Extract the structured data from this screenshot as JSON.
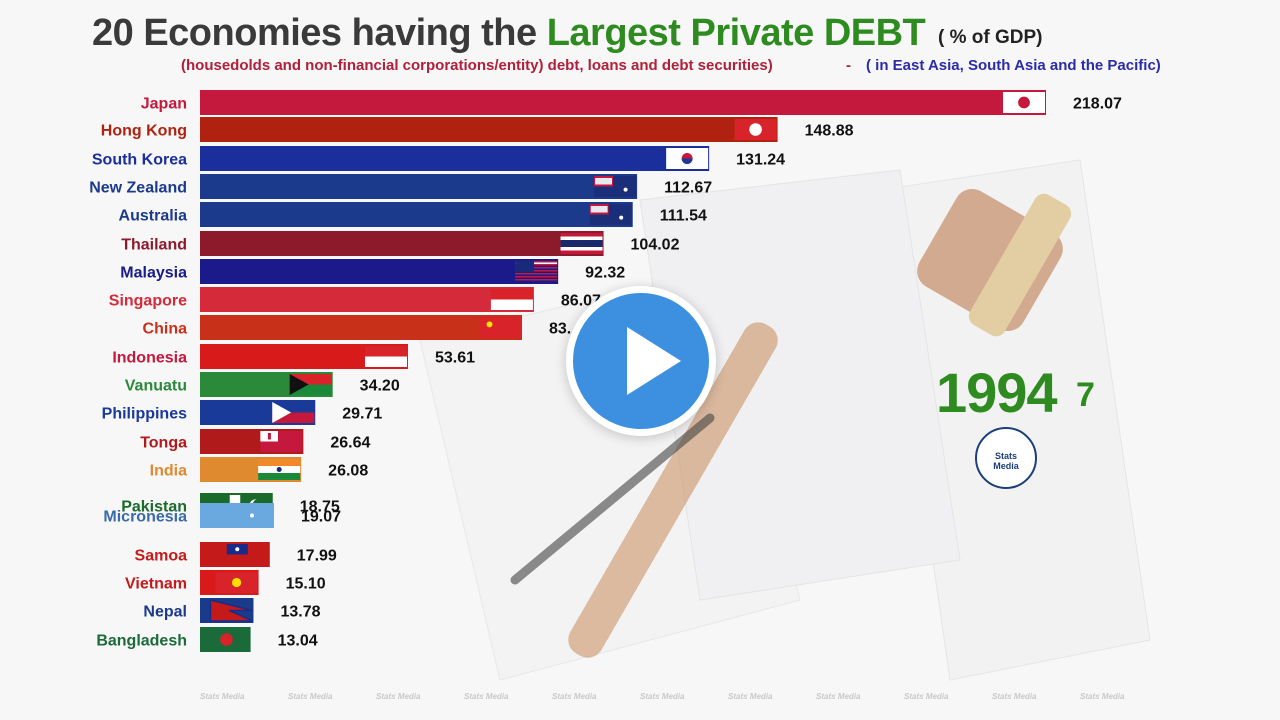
{
  "header": {
    "title_prefix": "20 Economies having the ",
    "title_accent": "Largest Private DEBT",
    "title_unit": "( % of GDP)",
    "subtitle": "(housedolds and non-financial corporations/entity) debt, loans and debt securities)",
    "subtitle_dash": "-",
    "region": "( in East Asia, South Asia and the Pacific)"
  },
  "year": {
    "main": "1994",
    "sub": "7"
  },
  "logo": {
    "line1": "Stats",
    "line2": "Media"
  },
  "watermark": "Stats Media",
  "colors": {
    "title_accent": "#2e8b1f",
    "subtitle": "#b0203a",
    "region": "#2c2ca8",
    "play": "#3d8fe0"
  },
  "chart_data": {
    "type": "bar",
    "orientation": "horizontal",
    "title": "20 Economies having the Largest Private DEBT",
    "unit": "( % of GDP)",
    "xlim": [
      0,
      218.07
    ],
    "bars": [
      {
        "name": "Japan",
        "value": 218.07,
        "value_label": "218.07",
        "color": "#c4183c",
        "label_color": "#c4183c",
        "flag": "japan"
      },
      {
        "name": "Hong Kong",
        "value": 148.88,
        "value_label": "148.88",
        "color": "#b0220f",
        "label_color": "#b0220f",
        "flag": "hong-kong"
      },
      {
        "name": "South Korea",
        "value": 131.24,
        "value_label": "131.24",
        "color": "#1a2e9c",
        "label_color": "#1a2e9c",
        "flag": "south-korea"
      },
      {
        "name": "New Zealand",
        "value": 112.67,
        "value_label": "112.67",
        "color": "#1c3a8c",
        "label_color": "#1c3a8c",
        "flag": "new-zealand"
      },
      {
        "name": "Australia",
        "value": 111.54,
        "value_label": "111.54",
        "color": "#1c3a8c",
        "label_color": "#1c3a8c",
        "flag": "australia"
      },
      {
        "name": "Thailand",
        "value": 104.02,
        "value_label": "104.02",
        "color": "#8c1a2a",
        "label_color": "#8c1a2a",
        "flag": "thailand"
      },
      {
        "name": "Malaysia",
        "value": 92.32,
        "value_label": "92.32",
        "color": "#1a1a8a",
        "label_color": "#1a1a8a",
        "flag": "malaysia"
      },
      {
        "name": "Singapore",
        "value": 86.07,
        "value_label": "86.07",
        "color": "#d42a3a",
        "label_color": "#d42a3a",
        "flag": "singapore"
      },
      {
        "name": "China",
        "value": 83.0,
        "value_label": "83.",
        "color": "#c8301a",
        "label_color": "#c8301a",
        "flag": "china"
      },
      {
        "name": "Indonesia",
        "value": 53.61,
        "value_label": "53.61",
        "color": "#d81a1a",
        "label_color": "#c4183c",
        "flag": "indonesia"
      },
      {
        "name": "Vanuatu",
        "value": 34.2,
        "value_label": "34.20",
        "color": "#2a8a3a",
        "label_color": "#2a8a3a",
        "flag": "vanuatu"
      },
      {
        "name": "Philippines",
        "value": 29.71,
        "value_label": "29.71",
        "color": "#1a3a9a",
        "label_color": "#1a3a9a",
        "flag": "philippines"
      },
      {
        "name": "Tonga",
        "value": 26.64,
        "value_label": "26.64",
        "color": "#b01a1a",
        "label_color": "#b01a1a",
        "flag": "tonga"
      },
      {
        "name": "India",
        "value": 26.08,
        "value_label": "26.08",
        "color": "#e08a30",
        "label_color": "#e08a30",
        "flag": "india"
      },
      {
        "name": "Pakistan",
        "value": 18.75,
        "value_label": "18.75",
        "color": "#1a6a2a",
        "label_color": "#1a6a2a",
        "flag": "pakistan"
      },
      {
        "name": "Micronesia",
        "value": 19.07,
        "value_label": "19.07",
        "color": "#6aa8e0",
        "label_color": "#3a6aa8",
        "flag": "micronesia"
      },
      {
        "name": "Samoa",
        "value": 17.99,
        "value_label": "17.99",
        "color": "#c41a1a",
        "label_color": "#c41a1a",
        "flag": "samoa"
      },
      {
        "name": "Vietnam",
        "value": 15.1,
        "value_label": "15.10",
        "color": "#d81a1a",
        "label_color": "#c41a1a",
        "flag": "vietnam"
      },
      {
        "name": "Nepal",
        "value": 13.78,
        "value_label": "13.78",
        "color": "#1a3a8a",
        "label_color": "#1a3a8a",
        "flag": "nepal"
      },
      {
        "name": "Bangladesh",
        "value": 13.04,
        "value_label": "13.04",
        "color": "#1a6a3a",
        "label_color": "#1a6a3a",
        "flag": "bangladesh"
      }
    ]
  }
}
